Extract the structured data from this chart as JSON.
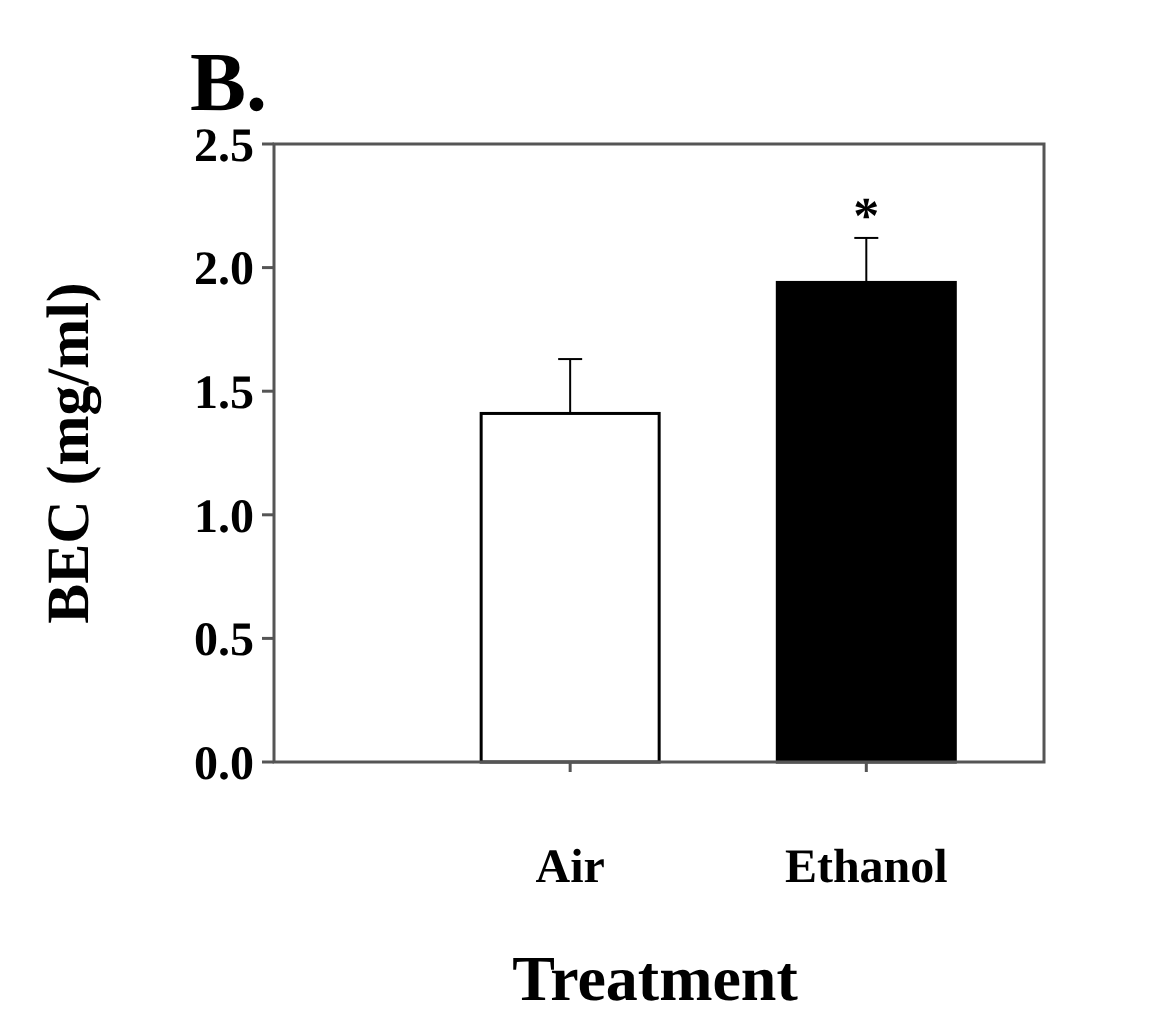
{
  "chart_data": {
    "type": "bar",
    "title": "B.",
    "xlabel": "Treatment",
    "ylabel": "BEC (mg/ml)",
    "categories": [
      "Air",
      "Ethanol"
    ],
    "values": [
      1.41,
      1.94
    ],
    "colors": [
      "#ffffff",
      "#000000"
    ],
    "errors": [
      [
        1.41,
        1.63
      ],
      [
        1.94,
        2.12
      ]
    ],
    "ylim": [
      0,
      2.5
    ],
    "yticks": [
      {
        "value": 0,
        "label": "0.0"
      },
      {
        "value": 0.5,
        "label": "0.5"
      },
      {
        "value": 1,
        "label": "1.0"
      },
      {
        "value": 1.5,
        "label": "1.5"
      },
      {
        "value": 2,
        "label": "2.0"
      },
      {
        "value": 2.5,
        "label": "2.5"
      }
    ],
    "annotations": [
      {
        "text": "*",
        "x": "Ethanol",
        "y": 2.12
      }
    ],
    "grid": false
  }
}
